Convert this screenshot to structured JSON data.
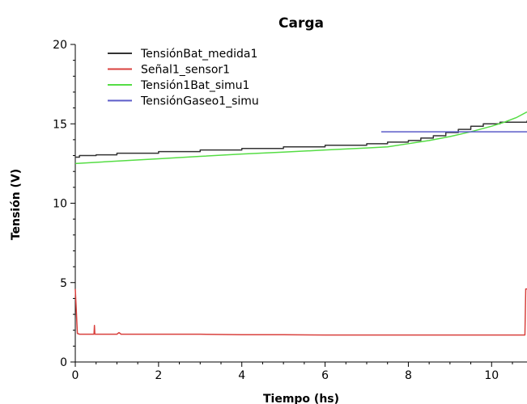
{
  "chart_data": {
    "type": "line",
    "title": "Carga",
    "xlabel": "Tiempo (hs)",
    "ylabel": "Tensión (V)",
    "xlim": [
      0,
      10.85
    ],
    "ylim": [
      0,
      20
    ],
    "xticks": [
      0,
      2,
      4,
      6,
      8,
      10
    ],
    "yticks": [
      0,
      5,
      10,
      15,
      20
    ],
    "xminor_step": 0.5,
    "yminor_step": 1,
    "grid": false,
    "legend_position": "top-left",
    "series": [
      {
        "name": "TensiónBat_medida1",
        "color": "#333333",
        "style": "step",
        "x": [
          0,
          0.1,
          0.5,
          1.0,
          2.0,
          3.0,
          4.0,
          5.0,
          6.0,
          7.0,
          7.5,
          8.0,
          8.3,
          8.6,
          8.9,
          9.2,
          9.5,
          9.8,
          10.2,
          10.85
        ],
        "y": [
          12.9,
          13.0,
          13.05,
          13.15,
          13.25,
          13.35,
          13.45,
          13.55,
          13.65,
          13.75,
          13.85,
          13.95,
          14.1,
          14.25,
          14.45,
          14.65,
          14.85,
          15.0,
          15.1,
          15.2
        ]
      },
      {
        "name": "Señal1_sensor1",
        "color": "#d9403d",
        "style": "line",
        "x": [
          0,
          0.05,
          0.1,
          0.45,
          0.46,
          0.47,
          0.5,
          1.0,
          1.05,
          1.1,
          2.0,
          3.0,
          4.0,
          5.0,
          6.0,
          7.0,
          8.0,
          9.0,
          10.0,
          10.8,
          10.82,
          10.85
        ],
        "y": [
          4.6,
          1.8,
          1.75,
          1.75,
          2.3,
          1.75,
          1.75,
          1.75,
          1.85,
          1.75,
          1.75,
          1.75,
          1.72,
          1.72,
          1.7,
          1.7,
          1.7,
          1.7,
          1.7,
          1.7,
          4.6,
          4.6
        ]
      },
      {
        "name": "Tensión1Bat_simu1",
        "color": "#55dd44",
        "style": "line",
        "x": [
          0,
          1,
          2,
          3,
          4,
          5,
          6,
          7,
          7.5,
          8,
          8.5,
          9,
          9.5,
          10,
          10.3,
          10.6,
          10.85
        ],
        "y": [
          12.5,
          12.65,
          12.8,
          12.95,
          13.1,
          13.22,
          13.35,
          13.48,
          13.55,
          13.75,
          13.95,
          14.2,
          14.5,
          14.85,
          15.1,
          15.4,
          15.75
        ]
      },
      {
        "name": "TensiónGaseo1_simu",
        "color": "#5b5bc8",
        "style": "line",
        "x": [
          7.35,
          10.85
        ],
        "y": [
          14.5,
          14.5
        ]
      }
    ]
  }
}
